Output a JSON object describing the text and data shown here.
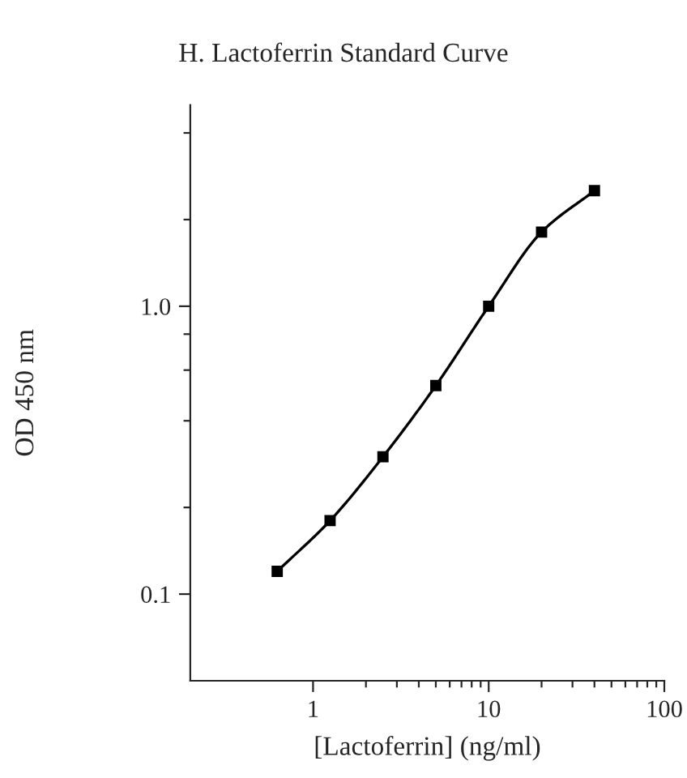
{
  "chart_data": {
    "type": "line",
    "title": "H. Lactoferrin Standard Curve",
    "xlabel": "[Lactoferrin] (ng/ml)",
    "ylabel": "OD 450 nm",
    "x": [
      0.625,
      1.25,
      2.5,
      5,
      10,
      20,
      40
    ],
    "series": [
      {
        "color": "#000000",
        "values": [
          0.12,
          0.18,
          0.3,
          0.53,
          1.0,
          1.81,
          2.52
        ]
      }
    ],
    "log": "xy",
    "marker": "square",
    "line_style": "solid",
    "grid": false,
    "legend": false,
    "xlim": [
      0.2,
      100
    ],
    "ylim": [
      0.05,
      5
    ],
    "xticks": [
      1,
      {
        "value": 2,
        "label": null
      },
      {
        "value": 3,
        "label": null
      },
      {
        "value": 4,
        "label": null
      },
      {
        "value": 5,
        "label": null
      },
      {
        "value": 6,
        "label": null
      },
      {
        "value": 7,
        "label": null
      },
      {
        "value": 8,
        "label": null
      },
      {
        "value": 9,
        "label": null
      },
      10,
      {
        "value": 20,
        "label": null
      },
      {
        "value": 30,
        "label": null
      },
      {
        "value": 40,
        "label": null
      },
      {
        "value": 50,
        "label": null
      },
      {
        "value": 60,
        "label": null
      },
      {
        "value": 70,
        "label": null
      },
      {
        "value": 80,
        "label": null
      },
      {
        "value": 90,
        "label": null
      },
      100
    ],
    "yticks": [
      {
        "value": 0.1,
        "label": "0.1"
      },
      {
        "value": 0.2,
        "label": null
      },
      {
        "value": 0.4,
        "label": null
      },
      {
        "value": 0.6,
        "label": null
      },
      {
        "value": 0.8,
        "label": null
      },
      {
        "value": 1.0,
        "label": "1.0"
      },
      {
        "value": 2,
        "label": null
      },
      {
        "value": 4,
        "label": null
      }
    ]
  }
}
